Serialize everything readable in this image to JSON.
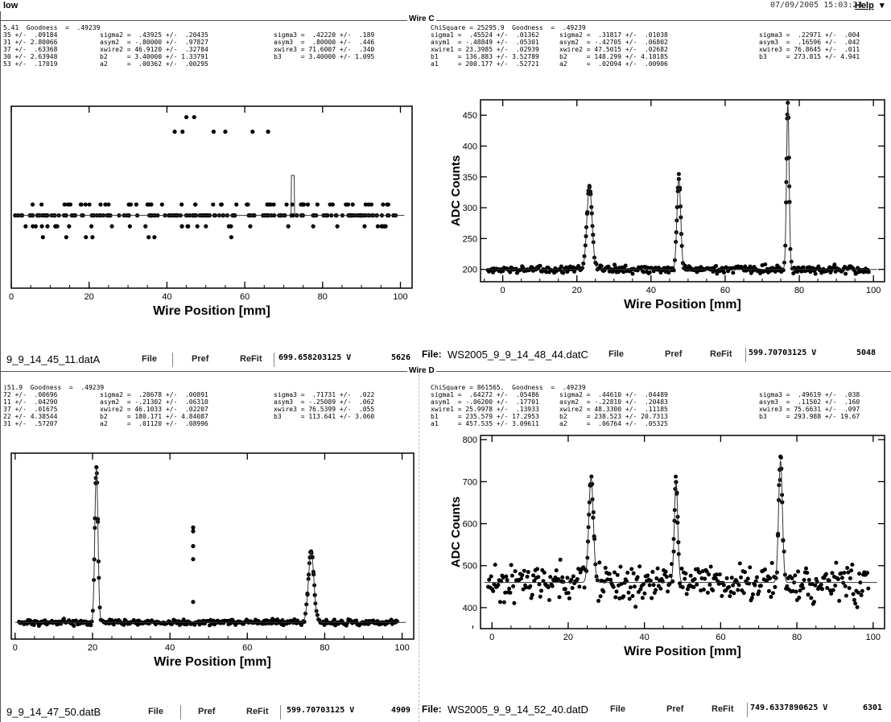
{
  "window": {
    "title": "low",
    "datetime": "07/09/2005 15:03:23",
    "help": "Help",
    "help_arrow": "▾"
  },
  "sections": {
    "wire_c": "Wire C",
    "wire_d": "Wire D"
  },
  "panels": {
    "tl": {
      "header_cols": [
        "5.41  Goodness  =  .49239\n35 +/-  .09184\n31 +/- 2.80066\n37 +/-  .63368\n30 +/- 2.63948\n53 +/-  .17019",
        "\nsigma2 =  .43925 +/-  .20435\nasym2  = -.80000 +/-  .97827\nxwire2 = 46.9120 +/-  .32784\nb2     = 3.40000 +/- 1.33791\na2     =  .00362 +/-  .00295",
        "\nsigma3 =  .42220 +/-  .189\nasym3  =  .80000 +/-  .446\nxwire3 = 71.6007 +/-  .340\nb3     = 3.40000 +/- 1.095"
      ],
      "file_label": "",
      "file_name": "9_9_14_45_11.datA",
      "buttons": [
        "File",
        "Pref",
        "ReFit"
      ],
      "voltage": "699.658203125 V",
      "voltage_num": "5626"
    },
    "tr": {
      "header_cols": [
        "ChiSquare = 25295.9  Goodness  =  .49239\nsigma1 =  .45524 +/-  .01362\nasym1  = -.48849 +/-  .05301\nxwire1 = 23.3985 +/-  .02939\nb1     = 136.883 +/- 3.52789\na1     = 200.177 +/-  .52721",
        "\nsigma2 =  .31817 +/-  .01038\nasym2  = -.42705 +/-  .06802\nxwire2 = 47.5015 +/-  .02682\nb2     = 148.299 +/- 4.18185\na2     =  .02094 +/-  .00906",
        "\nsigma3 =  .22971 +/-  .004\nasym3  =  .16596 +/-  .042\nxwire3 = 76.8645 +/-  .011\nb3     = 273.815 +/- 4.941"
      ],
      "file_label": "File:",
      "file_name": "WS2005_9_9_14_48_44.datC",
      "buttons": [
        "File",
        "Pref",
        "ReFit"
      ],
      "voltage": "599.70703125 V",
      "voltage_num": "5048"
    },
    "bl": {
      "header_cols": [
        ")51.9  Goodness  =  .49239\n72 +/-  .00696\n11 +/-  .04290\n37 +/-  .01675\n22 +/- 4.38544\n31 +/-  .57207",
        "\nsigma2 =  .28678 +/-  .00891\nasym2  = -.21302 +/-  .06310\nxwire2 = 46.1033 +/-  .02207\nb2     = 180.171 +/- 4.84087\na2     =  .01120 +/-  .08996",
        "\nsigma3 =  .71731 +/-  .022\nasym3  = -.25089 +/-  .062\nxwire3 = 76.5399 +/-  .055\nb3     = 113.641 +/- 3.060"
      ],
      "file_label": "",
      "file_name": "9_9_14_47_50.datB",
      "buttons": [
        "File",
        "Pref",
        "ReFit"
      ],
      "voltage": "599.70703125 V",
      "voltage_num": "4909"
    },
    "br": {
      "header_cols": [
        "ChiSquare = 861565.  Goodness  =  .49239\nsigma1 =  .64272 +/-  .05486\nasym1  = -.06200 +/-  .17701\nxwire1 = 25.9978 +/-  .13933\nb1     = 235.579 +/- 17.2953\na1     = 457.535 +/- 3.09611",
        "\nsigma2 =  .44610 +/-  .04489\nasym2  = -.22810 +/-  .20483\nxwire2 = 48.3300 +/-  .11185\nb2     = 238.523 +/- 20.7313\na2     =  .06764 +/-  .05325",
        "\nsigma3 =  .49619 +/-  .038\nasym3  =  .11502 +/-  .160\nxwire3 = 75.6631 +/-  .097\nb3     = 293.988 +/- 19.67"
      ],
      "file_label": "File:",
      "file_name": "WS2005_9_9_14_52_40.datD",
      "buttons": [
        "File",
        "Pref",
        "ReFit"
      ],
      "voltage": "749.6337890625 V",
      "voltage_num": "6301"
    }
  },
  "chart_data": [
    {
      "id": "tl",
      "type": "scatter",
      "xlabel": "Wire Position [mm]",
      "ylabel": "",
      "xlim": [
        0,
        103
      ],
      "ylim": [
        0,
        1
      ],
      "xticks": [
        0,
        20,
        40,
        60,
        80,
        100
      ],
      "yticks": [],
      "baseline": 0.4,
      "noise": 0.0,
      "levels": [
        0.62,
        0.52,
        0.46,
        0.4,
        0.34,
        0.28,
        0.22,
        0.15,
        0.06
      ],
      "peaks": [],
      "fit_step": {
        "x": 72,
        "h": 0.22
      },
      "outliers": [
        [
          45,
          0.94
        ],
        [
          47,
          0.94
        ],
        [
          42,
          0.86
        ],
        [
          44,
          0.86
        ],
        [
          52,
          0.86
        ],
        [
          55,
          0.86
        ],
        [
          62,
          0.86
        ],
        [
          66,
          0.86
        ]
      ],
      "npts": 260
    },
    {
      "id": "tr",
      "type": "scatter",
      "xlabel": "Wire Position [mm]",
      "ylabel": "ADC Counts",
      "xlim": [
        -6,
        103
      ],
      "ylim": [
        180,
        475
      ],
      "xticks": [
        0,
        20,
        40,
        60,
        80,
        100
      ],
      "yticks": [
        200,
        250,
        300,
        350,
        400,
        450
      ],
      "baseline": 200,
      "noise": 6,
      "peaks": [
        [
          23.4,
          135,
          0.7
        ],
        [
          47.5,
          148,
          0.5
        ],
        [
          76.9,
          270,
          0.35
        ]
      ],
      "outliers": [],
      "npts": 380
    },
    {
      "id": "bl",
      "type": "scatter",
      "xlabel": "Wire Position [mm]",
      "ylabel": "",
      "xlim": [
        -1,
        103
      ],
      "ylim": [
        0,
        1
      ],
      "xticks": [
        0,
        20,
        40,
        60,
        80,
        100
      ],
      "yticks": [],
      "baseline": 0.09,
      "noise": 0.015,
      "peaks": [
        [
          21,
          0.83,
          0.4
        ],
        [
          76.5,
          0.38,
          0.7
        ]
      ],
      "outliers": [
        [
          46,
          0.58
        ],
        [
          46,
          0.6
        ],
        [
          46,
          0.5
        ],
        [
          46,
          0.43
        ],
        [
          46,
          0.2
        ]
      ],
      "npts": 380
    },
    {
      "id": "br",
      "type": "scatter",
      "xlabel": "Wire Position [mm]",
      "ylabel": "ADC Counts",
      "xlim": [
        -3,
        103
      ],
      "ylim": [
        350,
        810
      ],
      "xticks": [
        0,
        20,
        40,
        60,
        80,
        100
      ],
      "yticks": [
        400,
        500,
        600,
        700,
        800
      ],
      "baseline": 460,
      "noise": 40,
      "peaks": [
        [
          26,
          250,
          0.6
        ],
        [
          48.3,
          240,
          0.45
        ],
        [
          75.7,
          290,
          0.5
        ]
      ],
      "outliers": [],
      "npts": 380
    }
  ]
}
